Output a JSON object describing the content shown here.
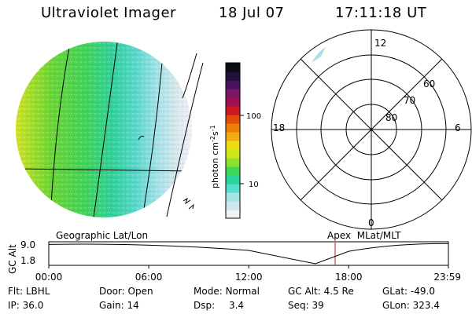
{
  "header": {
    "title": "Ultraviolet Imager",
    "date": "18 Jul 07",
    "time": "17:11:18 UT"
  },
  "colorbar": {
    "unit_label": "photon cm-2s-1",
    "ticks": [
      "100",
      "10"
    ],
    "colors": [
      "#eef2f4",
      "#cfe6ee",
      "#a7e2e4",
      "#55ddd0",
      "#2ad49b",
      "#3ed85a",
      "#8ee02a",
      "#cfe61a",
      "#eadd14",
      "#f2ae10",
      "#f07e0a",
      "#e44a0c",
      "#cc1820",
      "#a01050",
      "#7a1866",
      "#4a1060",
      "#20123a",
      "#0a0a14"
    ]
  },
  "polar": {
    "hour_labels": [
      "12",
      "18",
      "6",
      "0"
    ],
    "lat_labels": [
      "60",
      "70",
      "80"
    ]
  },
  "timeline": {
    "left_label": "Geographic Lat/Lon",
    "right_label": "Apex  MLat/MLT",
    "y_axis_label": "GC Alt",
    "y_ticks": [
      "9.0",
      "1.8"
    ],
    "x_ticks": [
      "00:00",
      "06:00",
      "12:00",
      "18:00",
      "23:59"
    ],
    "current_time_color": "#d04040"
  },
  "chart_data": {
    "type": "line",
    "title": "",
    "xlabel": "",
    "ylabel": "GC Alt",
    "x": [
      "00:00",
      "06:00",
      "12:00",
      "16:00",
      "18:00",
      "23:59"
    ],
    "series": [
      {
        "values": [
          8.6,
          8.9,
          6.5,
          1.8,
          6.2,
          8.9
        ]
      }
    ],
    "ylim": [
      1.8,
      9.0
    ],
    "current_time": "17:11"
  },
  "footer": {
    "row1": [
      {
        "label": "Flt:",
        "value": "LBHL"
      },
      {
        "label": "Door:",
        "value": "Open"
      },
      {
        "label": "Mode:",
        "value": "Normal"
      },
      {
        "label": "GC Alt:",
        "value": "4.5 Re"
      },
      {
        "label": "GLat:",
        "value": "-49.0"
      }
    ],
    "row2": [
      {
        "label": "IP:",
        "value": "36.0"
      },
      {
        "label": "Gain:",
        "value": "14"
      },
      {
        "label": "Dsp:",
        "value": "3.4"
      },
      {
        "label": "Seq:",
        "value": "39"
      },
      {
        "label": "GLon:",
        "value": "323.4"
      }
    ]
  }
}
